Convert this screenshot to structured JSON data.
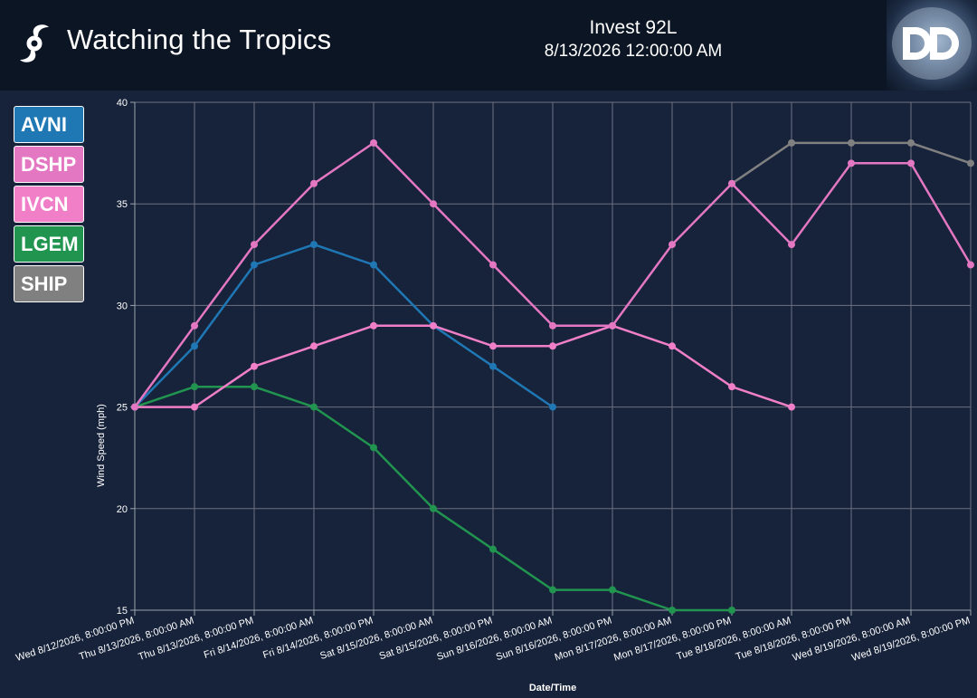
{
  "header": {
    "app_title": "Watching the Tropics",
    "storm_name": "Invest 92L",
    "storm_time": "8/13/2026 12:00:00 AM"
  },
  "icons": {
    "brand": "hurricane-icon",
    "logo": "dd-logo-icon"
  },
  "chart_data": {
    "type": "line",
    "x_title": "Date/Time",
    "y_title": "Wind Speed (mph)",
    "ylim": [
      15,
      40
    ],
    "y_ticks": [
      15,
      20,
      25,
      30,
      35,
      40
    ],
    "grid": true,
    "legend_position": "top-left",
    "categories": [
      "Wed 8/12/2026, 8:00:00 PM",
      "Thu 8/13/2026, 8:00:00 AM",
      "Thu 8/13/2026, 8:00:00 PM",
      "Fri 8/14/2026, 8:00:00 AM",
      "Fri 8/14/2026, 8:00:00 PM",
      "Sat 8/15/2026, 8:00:00 AM",
      "Sat 8/15/2026, 8:00:00 PM",
      "Sun 8/16/2026, 8:00:00 AM",
      "Sun 8/16/2026, 8:00:00 PM",
      "Mon 8/17/2026, 8:00:00 AM",
      "Mon 8/17/2026, 8:00:00 PM",
      "Tue 8/18/2026, 8:00:00 AM",
      "Tue 8/18/2026, 8:00:00 PM",
      "Wed 8/19/2026, 8:00:00 AM",
      "Wed 8/19/2026, 8:00:00 PM"
    ],
    "series": [
      {
        "name": "AVNI",
        "color": "#1f77b4",
        "values": [
          25,
          28,
          32,
          33,
          32,
          29,
          27,
          25,
          null,
          null,
          null,
          null,
          null,
          null,
          null
        ]
      },
      {
        "name": "DSHP",
        "color": "#e377c2",
        "values": [
          25,
          29,
          33,
          36,
          38,
          35,
          32,
          29,
          29,
          33,
          36,
          33,
          37,
          37,
          32
        ]
      },
      {
        "name": "IVCN",
        "color": "#f07fc8",
        "values": [
          25,
          25,
          27,
          28,
          29,
          29,
          28,
          28,
          29,
          28,
          26,
          25,
          null,
          null,
          null
        ]
      },
      {
        "name": "LGEM",
        "color": "#21944f",
        "values": [
          25,
          26,
          26,
          25,
          23,
          20,
          18,
          16,
          16,
          15,
          15,
          null,
          null,
          null,
          null
        ]
      },
      {
        "name": "SHIP",
        "color": "#808080",
        "values": [
          null,
          null,
          null,
          null,
          null,
          null,
          null,
          null,
          null,
          null,
          36,
          38,
          38,
          38,
          37
        ]
      }
    ]
  }
}
